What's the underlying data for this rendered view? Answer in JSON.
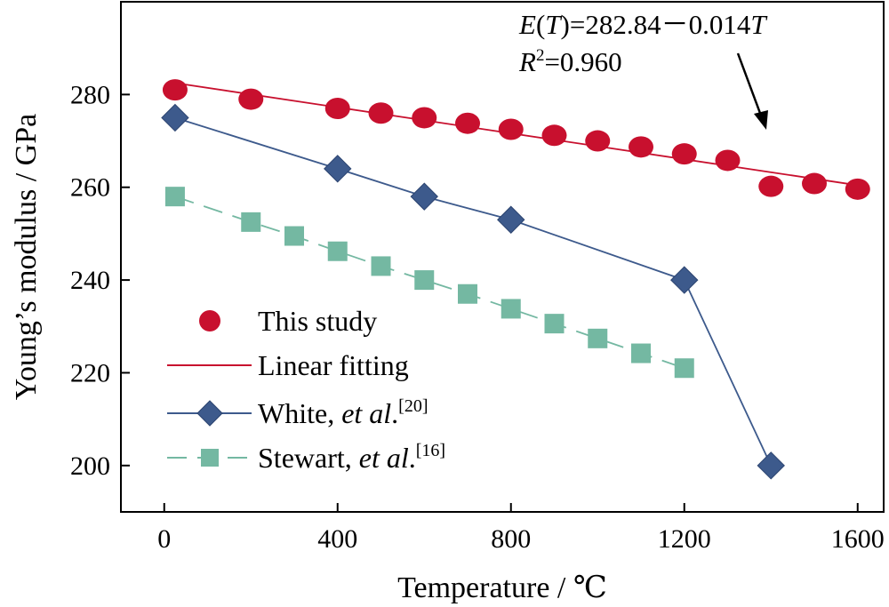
{
  "chart_data": {
    "type": "scatter",
    "xlabel": "Temperature / ℃",
    "ylabel": "Young’s modulus / GPa",
    "xlim": [
      -100,
      1660
    ],
    "ylim": [
      190,
      300
    ],
    "xticks": [
      0,
      400,
      800,
      1200,
      1600
    ],
    "yticks": [
      200,
      220,
      240,
      260,
      280
    ],
    "grid": false,
    "legend_position": "bottom-left",
    "annotation": {
      "eq_E": "E",
      "eq_T1": "T",
      "eq_mid": ")=282.84－0.014",
      "eq_T2": "T",
      "r2_R": "R",
      "r2_exp": "2",
      "r2_value": "=0.960"
    },
    "series": [
      {
        "name": "This study",
        "marker": "circle",
        "color": "#c8102e",
        "line": false,
        "x": [
          25,
          200,
          400,
          500,
          600,
          700,
          800,
          900,
          1000,
          1100,
          1200,
          1300,
          1400,
          1500,
          1600
        ],
        "y": [
          281,
          279,
          277,
          276,
          275,
          273.8,
          272.5,
          271.2,
          270,
          268.7,
          267.2,
          265.8,
          260.2,
          260.8,
          259.6
        ]
      },
      {
        "name": "Linear fitting",
        "marker": "none",
        "color": "#c8102e",
        "line": true,
        "x": [
          25,
          1600
        ],
        "y": [
          282.49,
          260.44
        ]
      },
      {
        "name": "White, ",
        "name_italic": "et al",
        "name_suffix": ".",
        "name_sup": "[20]",
        "marker": "diamond",
        "color": "#3d5a8c",
        "line": true,
        "x": [
          25,
          400,
          600,
          800,
          1200,
          1400
        ],
        "y": [
          275,
          264,
          258,
          253,
          240,
          200
        ]
      },
      {
        "name": "Stewart, ",
        "name_italic": "et al",
        "name_suffix": ".",
        "name_sup": "[16]",
        "marker": "square",
        "color": "#74b8a2",
        "line": true,
        "dashed": true,
        "x": [
          25,
          200,
          300,
          400,
          500,
          600,
          700,
          800,
          900,
          1000,
          1100,
          1200
        ],
        "y": [
          258,
          252.5,
          249.5,
          246.2,
          243,
          240,
          237,
          233.8,
          230.6,
          227.4,
          224.2,
          221
        ]
      }
    ]
  }
}
